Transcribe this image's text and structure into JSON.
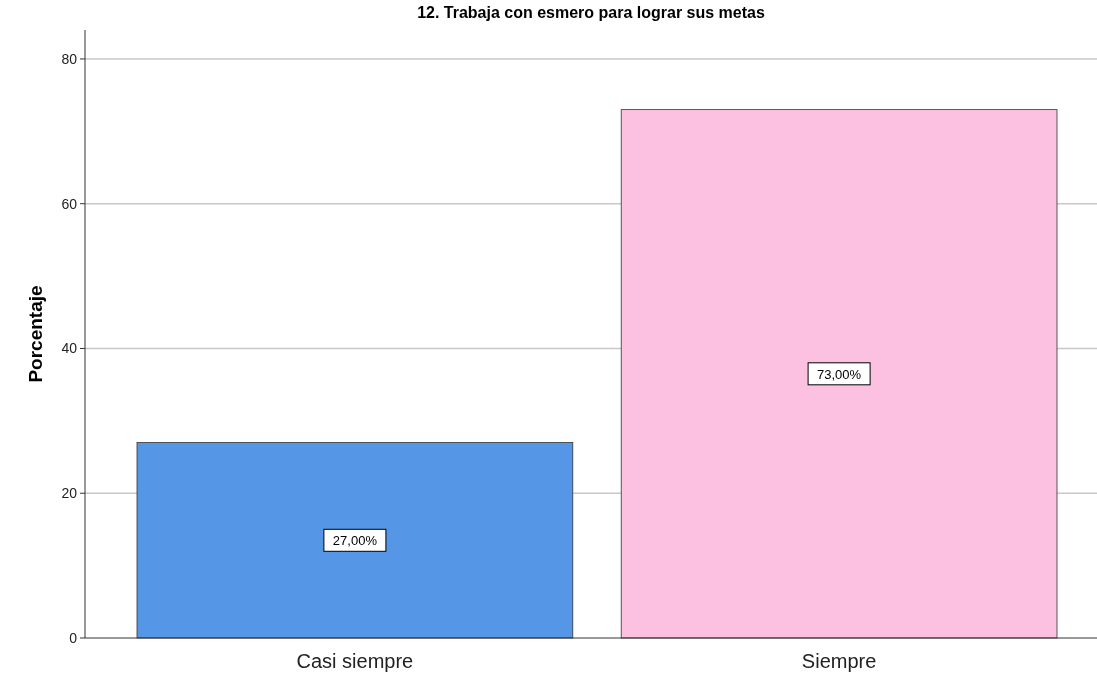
{
  "chart_data": {
    "type": "bar",
    "title": "12. Trabaja con esmero para lograr sus metas",
    "ylabel": "Porcentaje",
    "categories": [
      "Casi siempre",
      "Siempre"
    ],
    "values": [
      27,
      73
    ],
    "colors": [
      "#5596e6",
      "#fcc0e0"
    ],
    "value_labels": [
      "27,00%",
      "73,00%"
    ],
    "ylim": [
      0,
      84
    ],
    "yticks": [
      0,
      20,
      40,
      60,
      80
    ],
    "grid": "y"
  }
}
